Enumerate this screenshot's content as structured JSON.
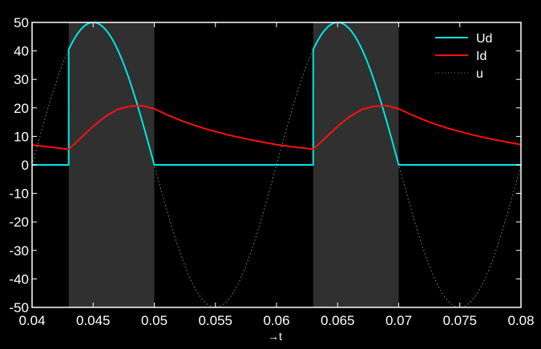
{
  "chart_data": {
    "type": "line",
    "title": "",
    "xlabel": "→t",
    "ylabel": "",
    "xlim": [
      0.04,
      0.08
    ],
    "ylim": [
      -50,
      50
    ],
    "xticks": [
      "0.04",
      "0.045",
      "0.05",
      "0.055",
      "0.06",
      "0.065",
      "0.07",
      "0.075",
      "0.08"
    ],
    "yticks": [
      "-50",
      "-40",
      "-30",
      "-20",
      "-10",
      "0",
      "10",
      "20",
      "30",
      "40",
      "50"
    ],
    "grid": false,
    "legend_position": "top-right",
    "background": "#000000",
    "shaded_intervals": [
      [
        0.043,
        0.05
      ],
      [
        0.063,
        0.07
      ]
    ],
    "shade_color": "#303030",
    "series": [
      {
        "name": "Ud",
        "color": "#00e5e5",
        "style": "solid",
        "description_values": "equals u during conduction intervals, 0 otherwise",
        "conduction_intervals": [
          [
            0.043,
            0.05
          ],
          [
            0.063,
            0.07
          ]
        ]
      },
      {
        "name": "Id",
        "color": "#ff1010",
        "style": "solid",
        "x": [
          0.04,
          0.041,
          0.042,
          0.043,
          0.044,
          0.045,
          0.046,
          0.047,
          0.048,
          0.049,
          0.05,
          0.051,
          0.052,
          0.053,
          0.054,
          0.055,
          0.056,
          0.057,
          0.058,
          0.059,
          0.06,
          0.061,
          0.062,
          0.063,
          0.064,
          0.065,
          0.066,
          0.067,
          0.068,
          0.069,
          0.07,
          0.071,
          0.072,
          0.073,
          0.074,
          0.075,
          0.076,
          0.077,
          0.078,
          0.079,
          0.08
        ],
        "y": [
          7.0,
          6.5,
          6.0,
          5.5,
          9.5,
          13.5,
          17.0,
          19.5,
          20.6,
          20.8,
          19.7,
          17.7,
          15.9,
          14.3,
          12.9,
          11.7,
          10.6,
          9.6,
          8.7,
          7.9,
          7.1,
          6.5,
          6.0,
          5.5,
          9.5,
          13.5,
          17.0,
          19.5,
          20.6,
          20.8,
          19.7,
          17.7,
          15.9,
          14.3,
          12.9,
          11.7,
          10.6,
          9.6,
          8.7,
          7.9,
          7.1
        ]
      },
      {
        "name": "u",
        "color": "#888888",
        "style": "dotted",
        "amplitude": 50,
        "frequency": 50
      }
    ]
  }
}
